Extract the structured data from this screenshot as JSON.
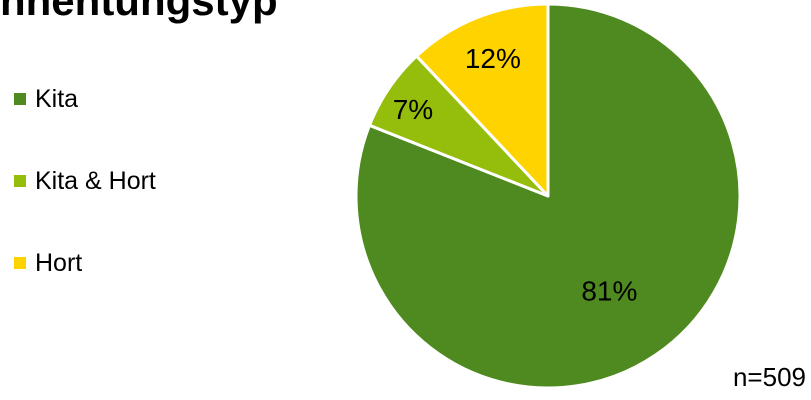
{
  "chart_data": {
    "type": "pie",
    "title": "nnentungstyp",
    "slices": [
      {
        "label": "Kita",
        "value": 81,
        "display": "81%",
        "color": "#4e8a1f"
      },
      {
        "label": "Kita & Hort",
        "value": 7,
        "display": "7%",
        "color": "#94bd0c"
      },
      {
        "label": "Hort",
        "value": 12,
        "display": "12%",
        "color": "#ffd300"
      }
    ],
    "start_angle_deg": 0,
    "direction": "clockwise",
    "legend_position": "left",
    "note": "n=509"
  }
}
